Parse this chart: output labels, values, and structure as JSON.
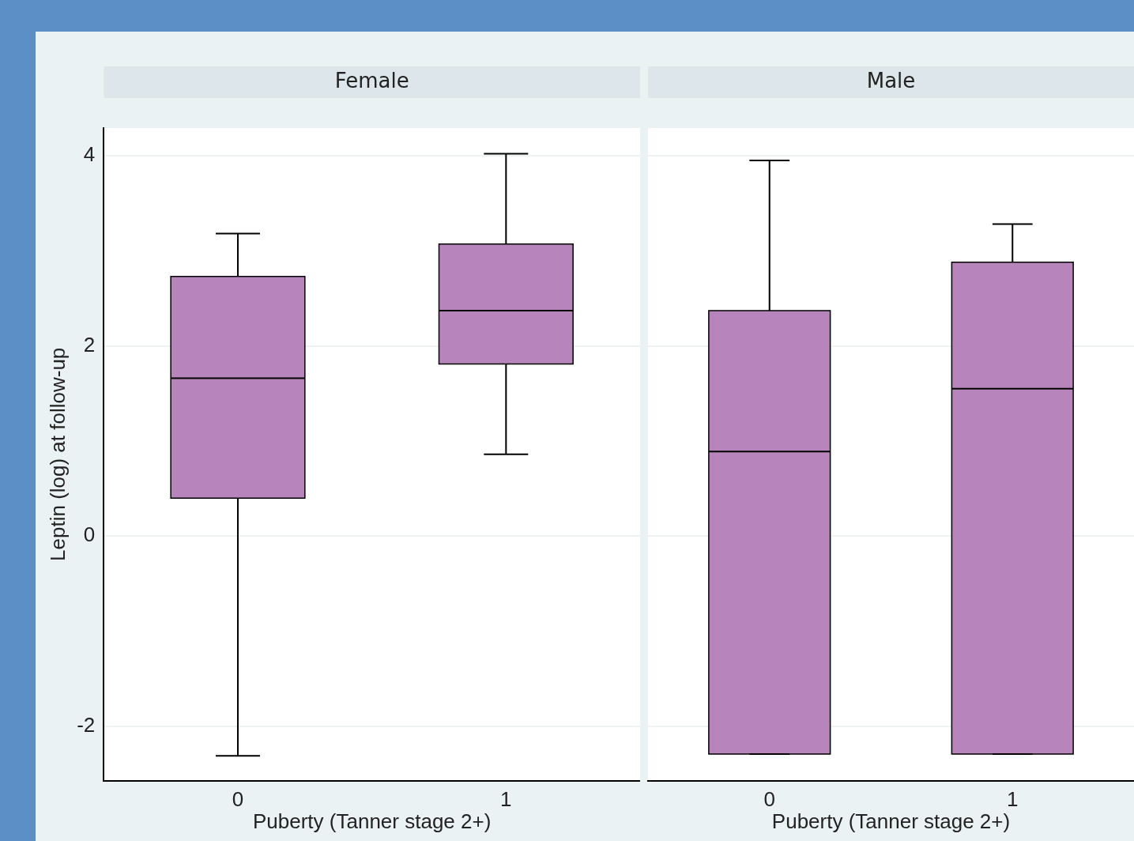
{
  "chart_data": [
    {
      "type": "box",
      "title": "Female",
      "categories": [
        "0",
        "1"
      ],
      "xlabel": "Puberty (Tanner stage 2+)",
      "ylabel": "Leptin (log) at follow-up",
      "color": "#b784bb",
      "ylim": [
        -2.57,
        4.29
      ],
      "yticks": [
        -2,
        0,
        2,
        4
      ],
      "grid": "y",
      "boxes": [
        {
          "low": -2.31,
          "q1": 0.4,
          "median": 1.66,
          "q3": 2.73,
          "high": 3.18
        },
        {
          "low": 0.86,
          "q1": 1.81,
          "median": 2.37,
          "q3": 3.07,
          "high": 4.02
        }
      ]
    },
    {
      "type": "box",
      "title": "Male",
      "categories": [
        "0",
        "1"
      ],
      "xlabel": "Puberty (Tanner stage 2+)",
      "color": "#b784bb",
      "ylim": [
        -2.57,
        4.29
      ],
      "yticks": [
        -2,
        0,
        2,
        4
      ],
      "grid": "y",
      "tick_labels": "x",
      "boxes": [
        {
          "low": -2.29,
          "q1": -2.29,
          "median": 0.89,
          "q3": 2.37,
          "high": 3.95
        },
        {
          "low": -2.29,
          "q1": -2.29,
          "median": 1.55,
          "q3": 2.88,
          "high": 3.28
        }
      ]
    }
  ]
}
